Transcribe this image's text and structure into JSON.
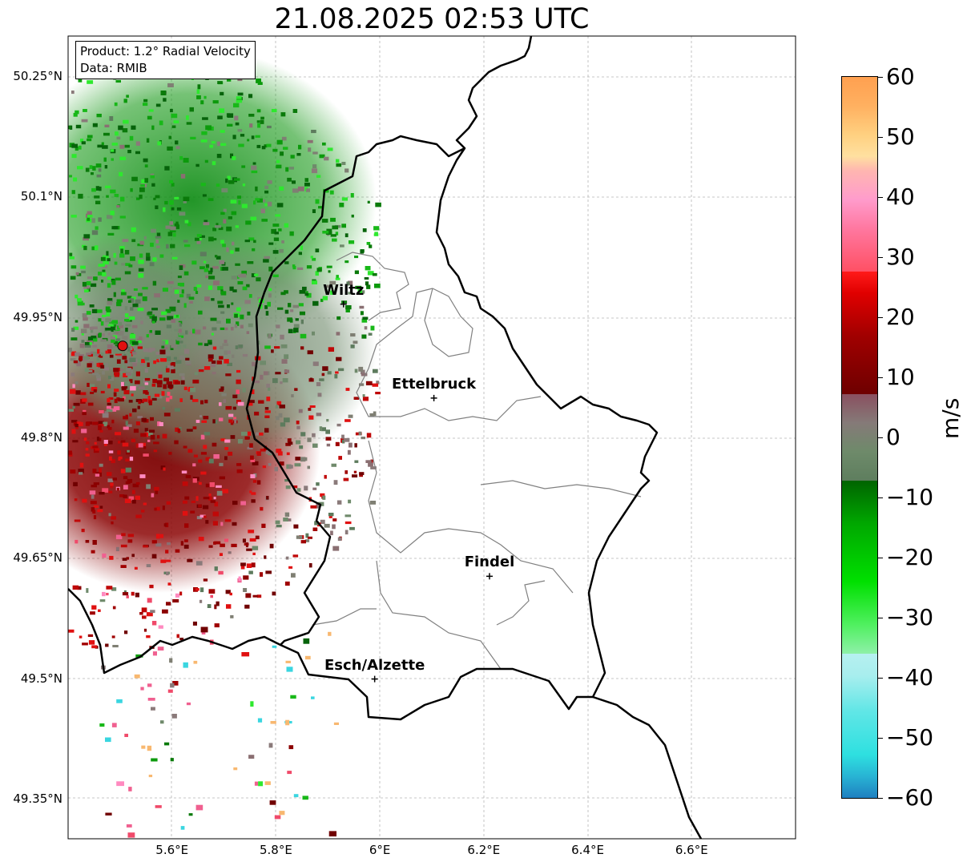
{
  "title": "21.08.2025 02:53 UTC",
  "info": {
    "product": "Product: 1.2° Radial Velocity",
    "data": "Data: RMIB"
  },
  "lat_ticks": [
    "50.25°N",
    "50.1°N",
    "49.95°N",
    "49.8°N",
    "49.65°N",
    "49.5°N",
    "49.35°N"
  ],
  "lon_ticks": [
    "5.6°E",
    "5.8°E",
    "6°E",
    "6.2°E",
    "6.4°E",
    "6.6°E"
  ],
  "cities": [
    {
      "name": "Wiltz",
      "lon": 5.93,
      "lat": 49.966
    },
    {
      "name": "Ettelbruck",
      "lon": 6.104,
      "lat": 49.849
    },
    {
      "name": "Findel",
      "lon": 6.211,
      "lat": 49.627
    },
    {
      "name": "Esch/Alzette",
      "lon": 5.99,
      "lat": 49.499
    }
  ],
  "radar_site": {
    "lon": 5.505,
    "lat": 49.914,
    "color": "#e01010"
  },
  "colorbar": {
    "label": "m/s",
    "min": -60,
    "max": 60,
    "ticks": [
      "60",
      "50",
      "40",
      "30",
      "20",
      "10",
      "0",
      "−10",
      "−20",
      "−30",
      "−40",
      "−50",
      "−60"
    ]
  },
  "colors": {
    "approaching_green": "#0b8a0b",
    "receding_red": "#8b0000",
    "near_zero": "#6e8a6a",
    "border": "#000000",
    "canton_border": "#888888"
  }
}
